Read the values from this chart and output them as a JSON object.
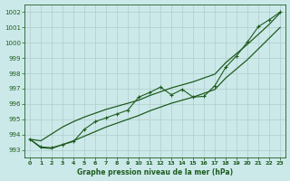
{
  "title": "Graphe pression niveau de la mer (hPa)",
  "bg_color": "#cce9ea",
  "grid_color": "#b0cccc",
  "line_color": "#1e5c1e",
  "xlim": [
    -0.5,
    23.5
  ],
  "ylim": [
    992.5,
    1002.5
  ],
  "xticks": [
    0,
    1,
    2,
    3,
    4,
    5,
    6,
    7,
    8,
    9,
    10,
    11,
    12,
    13,
    14,
    15,
    16,
    17,
    18,
    19,
    20,
    21,
    22,
    23
  ],
  "yticks": [
    993,
    994,
    995,
    996,
    997,
    998,
    999,
    1000,
    1001,
    1002
  ],
  "series_zigzag": [
    993.7,
    993.2,
    993.15,
    993.35,
    993.55,
    994.35,
    994.85,
    995.1,
    995.35,
    995.6,
    996.45,
    996.75,
    997.1,
    996.6,
    996.95,
    996.45,
    996.5,
    997.2,
    998.4,
    999.15,
    1000.05,
    1001.05,
    1001.5,
    1002.0
  ],
  "series_upper": [
    993.7,
    993.6,
    994.05,
    994.5,
    994.85,
    995.15,
    995.4,
    995.65,
    995.85,
    996.05,
    996.25,
    996.55,
    996.8,
    997.05,
    997.25,
    997.45,
    997.7,
    997.95,
    998.7,
    999.3,
    999.9,
    1000.55,
    1001.2,
    1001.95
  ],
  "series_lower": [
    993.7,
    993.15,
    993.1,
    993.35,
    993.6,
    993.9,
    994.2,
    994.5,
    994.75,
    995.0,
    995.25,
    995.55,
    995.8,
    996.05,
    996.25,
    996.45,
    996.7,
    996.95,
    997.7,
    998.3,
    998.9,
    999.6,
    1000.3,
    1001.0
  ]
}
